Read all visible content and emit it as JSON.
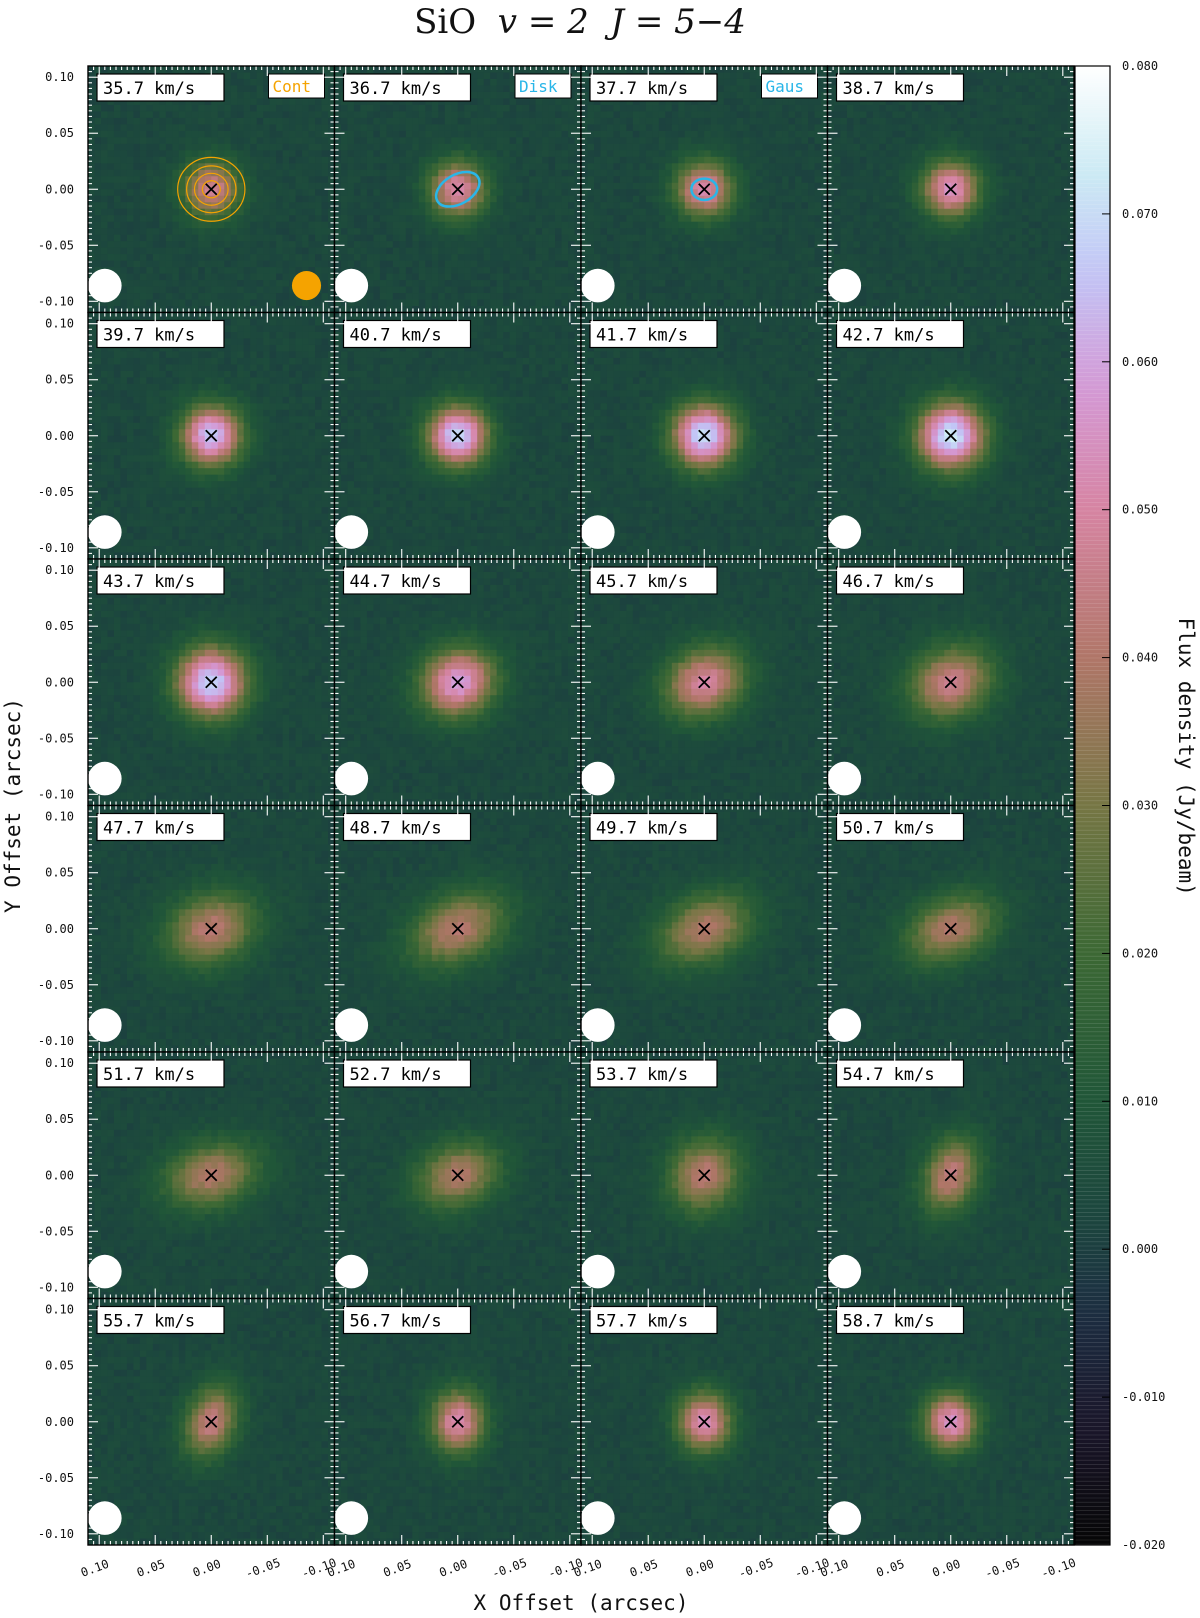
{
  "chart_data": {
    "type": "heatmap",
    "title_species": "SiO",
    "title_v": "v = 2",
    "title_transition": "J = 5−4",
    "xlabel": "X Offset (arcsec)",
    "ylabel": "Y Offset (arcsec)",
    "colorbar_label": "Flux density (Jy/beam)",
    "colorbar_range": [
      -0.02,
      0.08
    ],
    "colorbar_ticks": [
      "0.080",
      "0.070",
      "0.060",
      "0.050",
      "0.040",
      "0.030",
      "0.020",
      "0.010",
      "0.000",
      "-0.010",
      "-0.020"
    ],
    "x_range": [
      0.11,
      -0.11
    ],
    "y_range": [
      -0.11,
      0.11
    ],
    "x_ticks": [
      "0.10",
      "0.05",
      "0.00",
      "-0.05",
      "-0.10"
    ],
    "y_ticks": [
      "0.10",
      "0.05",
      "0.00",
      "-0.05",
      "-0.10"
    ],
    "grid_layout": {
      "rows": 6,
      "cols": 4
    },
    "legend": [
      {
        "label": "Cont",
        "color": "#f5a300"
      },
      {
        "label": "Disk",
        "color": "#29b6e8"
      },
      {
        "label": "Gaus",
        "color": "#29b6e8"
      }
    ],
    "colors": {
      "beam": "#ffffff",
      "cont": "#f5a300",
      "model": "#29b6e8",
      "background": "#1c4a3c"
    },
    "channels": [
      {
        "label": "35.7 km/s",
        "peak": 0.045,
        "sx": 0.018,
        "sy": 0.018,
        "pa": 0
      },
      {
        "label": "36.7 km/s",
        "peak": 0.049,
        "sx": 0.018,
        "sy": 0.018,
        "pa": 0
      },
      {
        "label": "37.7 km/s",
        "peak": 0.05,
        "sx": 0.018,
        "sy": 0.018,
        "pa": 0
      },
      {
        "label": "38.7 km/s",
        "peak": 0.053,
        "sx": 0.018,
        "sy": 0.018,
        "pa": 0
      },
      {
        "label": "39.7 km/s",
        "peak": 0.063,
        "sx": 0.019,
        "sy": 0.019,
        "pa": 0
      },
      {
        "label": "40.7 km/s",
        "peak": 0.066,
        "sx": 0.019,
        "sy": 0.019,
        "pa": 0
      },
      {
        "label": "41.7 km/s",
        "peak": 0.068,
        "sx": 0.02,
        "sy": 0.02,
        "pa": 0
      },
      {
        "label": "42.7 km/s",
        "peak": 0.07,
        "sx": 0.021,
        "sy": 0.021,
        "pa": 0
      },
      {
        "label": "43.7 km/s",
        "peak": 0.066,
        "sx": 0.022,
        "sy": 0.022,
        "pa": 0
      },
      {
        "label": "44.7 km/s",
        "peak": 0.056,
        "sx": 0.024,
        "sy": 0.021,
        "pa": 25
      },
      {
        "label": "45.7 km/s",
        "peak": 0.047,
        "sx": 0.026,
        "sy": 0.021,
        "pa": 25
      },
      {
        "label": "46.7 km/s",
        "peak": 0.043,
        "sx": 0.027,
        "sy": 0.022,
        "pa": 25
      },
      {
        "label": "47.7 km/s",
        "peak": 0.039,
        "sx": 0.029,
        "sy": 0.022,
        "pa": 20
      },
      {
        "label": "48.7 km/s",
        "peak": 0.038,
        "sx": 0.032,
        "sy": 0.021,
        "pa": 25
      },
      {
        "label": "49.7 km/s",
        "peak": 0.037,
        "sx": 0.031,
        "sy": 0.021,
        "pa": 25
      },
      {
        "label": "50.7 km/s",
        "peak": 0.037,
        "sx": 0.03,
        "sy": 0.02,
        "pa": 25
      },
      {
        "label": "51.7 km/s",
        "peak": 0.037,
        "sx": 0.03,
        "sy": 0.02,
        "pa": 15
      },
      {
        "label": "52.7 km/s",
        "peak": 0.037,
        "sx": 0.027,
        "sy": 0.02,
        "pa": 20
      },
      {
        "label": "53.7 km/s",
        "peak": 0.039,
        "sx": 0.022,
        "sy": 0.024,
        "pa": -30
      },
      {
        "label": "54.7 km/s",
        "peak": 0.041,
        "sx": 0.017,
        "sy": 0.024,
        "pa": -20
      },
      {
        "label": "55.7 km/s",
        "peak": 0.042,
        "sx": 0.016,
        "sy": 0.023,
        "pa": -20
      },
      {
        "label": "56.7 km/s",
        "peak": 0.049,
        "sx": 0.017,
        "sy": 0.02,
        "pa": 0
      },
      {
        "label": "57.7 km/s",
        "peak": 0.051,
        "sx": 0.017,
        "sy": 0.019,
        "pa": 0
      },
      {
        "label": "58.7 km/s",
        "peak": 0.053,
        "sx": 0.017,
        "sy": 0.018,
        "pa": 0
      }
    ]
  }
}
